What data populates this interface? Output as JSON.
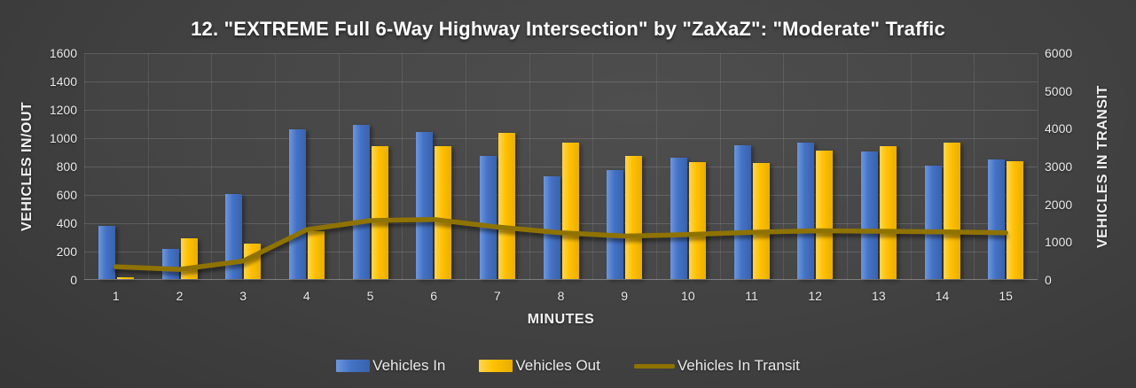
{
  "title": "12. \"EXTREME Full 6-Way Highway Intersection\" by \"ZaXaZ\": \"Moderate\" Traffic",
  "chart_data": {
    "type": "bar",
    "categories": [
      "1",
      "2",
      "3",
      "4",
      "5",
      "6",
      "7",
      "8",
      "9",
      "10",
      "11",
      "12",
      "13",
      "14",
      "15"
    ],
    "series": [
      {
        "name": "Vehicles In",
        "type": "bar",
        "axis": "left",
        "color": "#4472C4",
        "values": [
          375,
          210,
          600,
          1055,
          1090,
          1040,
          870,
          725,
          770,
          855,
          945,
          965,
          900,
          800,
          845
        ]
      },
      {
        "name": "Vehicles Out",
        "type": "bar",
        "axis": "left",
        "color": "#FFC000",
        "values": [
          10,
          290,
          250,
          340,
          935,
          935,
          1030,
          965,
          870,
          825,
          820,
          905,
          935,
          960,
          830
        ]
      },
      {
        "name": "Vehicles In Transit",
        "type": "line",
        "axis": "right",
        "color": "#8F7300",
        "values": [
          350,
          280,
          500,
          1330,
          1570,
          1600,
          1400,
          1250,
          1160,
          1200,
          1260,
          1300,
          1290,
          1270,
          1250
        ]
      }
    ],
    "xlabel": "MINUTES",
    "left_axis": {
      "title": "VEHICLES IN/OUT",
      "min": 0,
      "max": 1600,
      "step": 200
    },
    "right_axis": {
      "title": "VEHICLES IN TRANSIT",
      "min": 0,
      "max": 6000,
      "step": 1000
    },
    "legend_position": "bottom",
    "grid": true,
    "background_color": "#3c3c3c",
    "text_color": "#ffffff"
  }
}
